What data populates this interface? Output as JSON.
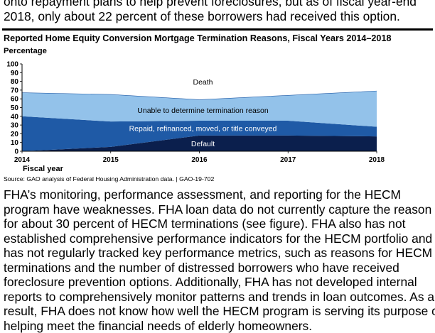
{
  "top_text": {
    "lines": [
      "onto repayment plans to help prevent foreclosures, but as of fiscal year-end",
      "2018, only about 22 percent of these borrowers had received this option."
    ]
  },
  "figure": {
    "title": "Reported Home Equity Conversion Mortgage Termination Reasons, Fiscal Years 2014–2018",
    "source": "Source: GAO analysis of Federal Housing Administration data. | GAO-19-702"
  },
  "chart_data": {
    "type": "area",
    "stacked": true,
    "title": "Reported Home Equity Conversion Mortgage Termination Reasons, Fiscal Years 2014–2018",
    "ylabel": "Percentage",
    "xlabel": "Fiscal year",
    "x": [
      "2014",
      "2015",
      "2016",
      "2017",
      "2018"
    ],
    "ylim": [
      0,
      100
    ],
    "yticks": [
      0,
      10,
      20,
      30,
      40,
      50,
      60,
      70,
      80,
      90,
      100
    ],
    "grid": false,
    "series": [
      {
        "name": "Default",
        "values": [
          0,
          5,
          18,
          18,
          17
        ],
        "color": "#0b1f4d",
        "label_color": "#ffffff"
      },
      {
        "name": "Repaid, refinanced, moved, or title conveyed",
        "values": [
          40,
          29,
          17,
          17,
          11
        ],
        "color": "#1f5aa6",
        "label_color": "#ffffff"
      },
      {
        "name": "Unable to determine termination reason",
        "values": [
          27,
          31,
          24,
          29,
          41
        ],
        "color": "#93c2ea",
        "label_color": "#000000"
      },
      {
        "name": "Death",
        "values": [
          33,
          35,
          41,
          36,
          31
        ],
        "color": "#ffffff",
        "label_color": "#000000"
      }
    ]
  },
  "body_text": {
    "lines": [
      "FHA’s monitoring, performance assessment, and reporting for the HECM",
      "program have weaknesses. FHA loan data do not currently capture the reason",
      "for about 30 percent of HECM terminations (see figure). FHA also has not",
      "established comprehensive performance indicators for the HECM portfolio and",
      "has not regularly tracked key performance metrics, such as reasons for HECM",
      "terminations and the number of distressed borrowers who have received",
      "foreclosure prevention options. Additionally, FHA has not developed internal",
      "reports to comprehensively monitor patterns and trends in loan outcomes. As a",
      "result, FHA does not know how well the HECM program is serving its purpose of",
      "helping meet the financial needs of elderly homeowners."
    ]
  }
}
